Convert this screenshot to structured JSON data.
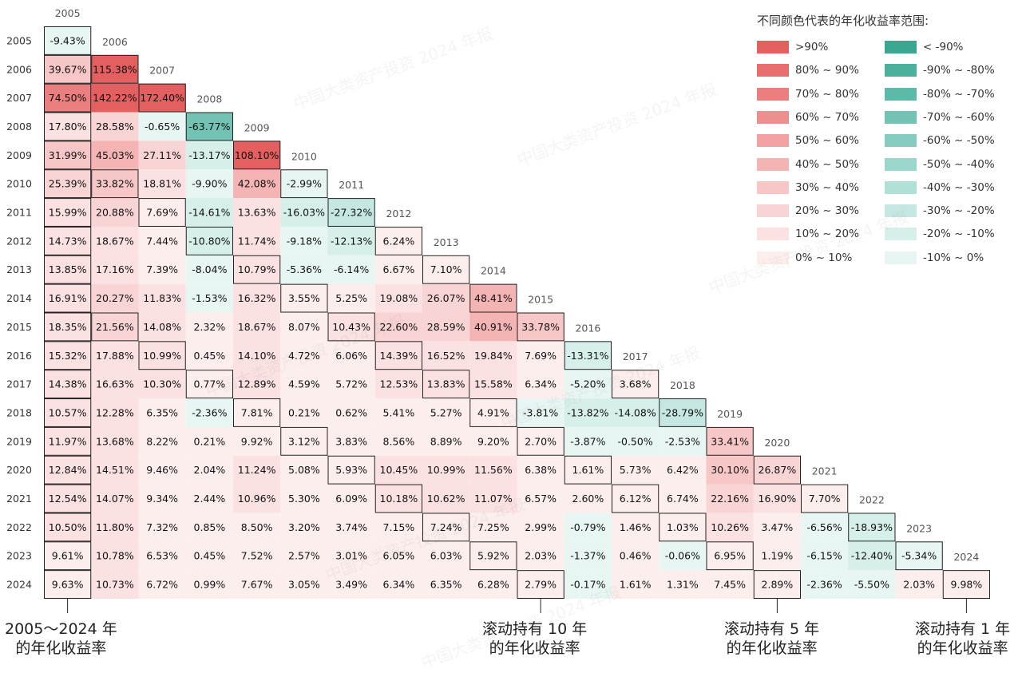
{
  "chart_data": {
    "type": "heatmap",
    "years": [
      "2005",
      "2006",
      "2007",
      "2008",
      "2009",
      "2010",
      "2011",
      "2012",
      "2013",
      "2014",
      "2015",
      "2016",
      "2017",
      "2018",
      "2019",
      "2020",
      "2021",
      "2022",
      "2023",
      "2024"
    ],
    "rows": [
      [
        "-9.43%"
      ],
      [
        "39.67%",
        "115.38%"
      ],
      [
        "74.50%",
        "142.22%",
        "172.40%"
      ],
      [
        "17.80%",
        "28.58%",
        "-0.65%",
        "-63.77%"
      ],
      [
        "31.99%",
        "45.03%",
        "27.11%",
        "-13.17%",
        "108.10%"
      ],
      [
        "25.39%",
        "33.82%",
        "18.81%",
        "-9.90%",
        "42.08%",
        "-2.99%"
      ],
      [
        "15.99%",
        "20.88%",
        "7.69%",
        "-14.61%",
        "13.63%",
        "-16.03%",
        "-27.32%"
      ],
      [
        "14.73%",
        "18.67%",
        "7.44%",
        "-10.80%",
        "11.74%",
        "-9.18%",
        "-12.13%",
        "6.24%"
      ],
      [
        "13.85%",
        "17.16%",
        "7.39%",
        "-8.04%",
        "10.79%",
        "-5.36%",
        "-6.14%",
        "6.67%",
        "7.10%"
      ],
      [
        "16.91%",
        "20.27%",
        "11.83%",
        "-1.53%",
        "16.32%",
        "3.55%",
        "5.25%",
        "19.08%",
        "26.07%",
        "48.41%"
      ],
      [
        "18.35%",
        "21.56%",
        "14.08%",
        "2.32%",
        "18.67%",
        "8.07%",
        "10.43%",
        "22.60%",
        "28.59%",
        "40.91%",
        "33.78%"
      ],
      [
        "15.32%",
        "17.88%",
        "10.99%",
        "0.45%",
        "14.10%",
        "4.72%",
        "6.06%",
        "14.39%",
        "16.52%",
        "19.84%",
        "7.69%",
        "-13.31%"
      ],
      [
        "14.38%",
        "16.63%",
        "10.30%",
        "0.77%",
        "12.89%",
        "4.59%",
        "5.72%",
        "12.53%",
        "13.83%",
        "15.58%",
        "6.34%",
        "-5.20%",
        "3.68%"
      ],
      [
        "10.57%",
        "12.28%",
        "6.35%",
        "-2.36%",
        "7.81%",
        "0.21%",
        "0.62%",
        "5.41%",
        "5.27%",
        "4.91%",
        "-3.81%",
        "-13.82%",
        "-14.08%",
        "-28.79%"
      ],
      [
        "11.97%",
        "13.68%",
        "8.22%",
        "0.21%",
        "9.92%",
        "3.12%",
        "3.83%",
        "8.56%",
        "8.89%",
        "9.20%",
        "2.70%",
        "-3.87%",
        "-0.50%",
        "-2.53%",
        "33.41%"
      ],
      [
        "12.84%",
        "14.51%",
        "9.46%",
        "2.04%",
        "11.24%",
        "5.08%",
        "5.93%",
        "10.45%",
        "10.99%",
        "11.56%",
        "6.38%",
        "1.61%",
        "5.73%",
        "6.42%",
        "30.10%",
        "26.87%"
      ],
      [
        "12.54%",
        "14.07%",
        "9.34%",
        "2.44%",
        "10.96%",
        "5.30%",
        "6.09%",
        "10.18%",
        "10.62%",
        "11.07%",
        "6.57%",
        "2.60%",
        "6.12%",
        "6.74%",
        "22.16%",
        "16.90%",
        "7.70%"
      ],
      [
        "10.50%",
        "11.80%",
        "7.32%",
        "0.85%",
        "8.50%",
        "3.20%",
        "3.74%",
        "7.15%",
        "7.24%",
        "7.25%",
        "2.99%",
        "-0.79%",
        "1.46%",
        "1.03%",
        "10.26%",
        "3.47%",
        "-6.56%",
        "-18.93%"
      ],
      [
        "9.61%",
        "10.78%",
        "6.53%",
        "0.45%",
        "7.52%",
        "2.57%",
        "3.01%",
        "6.05%",
        "6.03%",
        "5.92%",
        "2.03%",
        "-1.37%",
        "0.46%",
        "-0.06%",
        "6.95%",
        "1.19%",
        "-6.15%",
        "-12.40%",
        "-5.34%"
      ],
      [
        "9.63%",
        "10.73%",
        "6.72%",
        "0.99%",
        "7.67%",
        "3.05%",
        "3.49%",
        "6.34%",
        "6.35%",
        "6.28%",
        "2.79%",
        "-0.17%",
        "1.61%",
        "1.31%",
        "7.45%",
        "2.89%",
        "-2.36%",
        "-5.50%",
        "2.03%",
        "9.98%"
      ]
    ],
    "highlight_mode": "boxed cells: first column of the 2005~2024 holding window, the 10-year, 5-year and 1-year rolling diagonals",
    "color_scale": {
      "positive": [
        "#fdeeee",
        "#fbe1e1",
        "#f9d4d4",
        "#f7c6c6",
        "#f4b4b4",
        "#f1a1a1",
        "#ee8e8e",
        "#eb7e7e",
        "#e96e6e",
        "#e45f5f"
      ],
      "negative": [
        "#e7f6f3",
        "#d6efea",
        "#c4e8e1",
        "#b1e0d7",
        "#9bd6cb",
        "#86cdbf",
        "#72c3b3",
        "#5dbaa8",
        "#4bb19c",
        "#3aa791"
      ]
    }
  },
  "legend": {
    "title": "不同颜色代表的年化收益率范围:",
    "positive": [
      ">90%",
      "80% ~ 90%",
      "70% ~ 80%",
      "60% ~ 70%",
      "50% ~ 60%",
      "40% ~ 50%",
      "30% ~ 40%",
      "20% ~ 30%",
      "10% ~ 20%",
      "0% ~ 10%"
    ],
    "negative": [
      "< -90%",
      "-90% ~ -80%",
      "-80% ~ -70%",
      "-70% ~ -60%",
      "-60% ~ -50%",
      "-50% ~ -40%",
      "-40% ~ -30%",
      "-30% ~ -20%",
      "-20% ~ -10%",
      "-10% ~ 0%"
    ]
  },
  "annotations": {
    "full_line1": "2005～2024 年",
    "full_line2": "的年化收益率",
    "ten_line1": "滚动持有 10 年",
    "ten_line2": "的年化收益率",
    "five_line1": "滚动持有 5 年",
    "five_line2": "的年化收益率",
    "one_line1": "滚动持有 1 年",
    "one_line2": "的年化收益率"
  },
  "watermark": "中国大类资产投资 2024 年报"
}
